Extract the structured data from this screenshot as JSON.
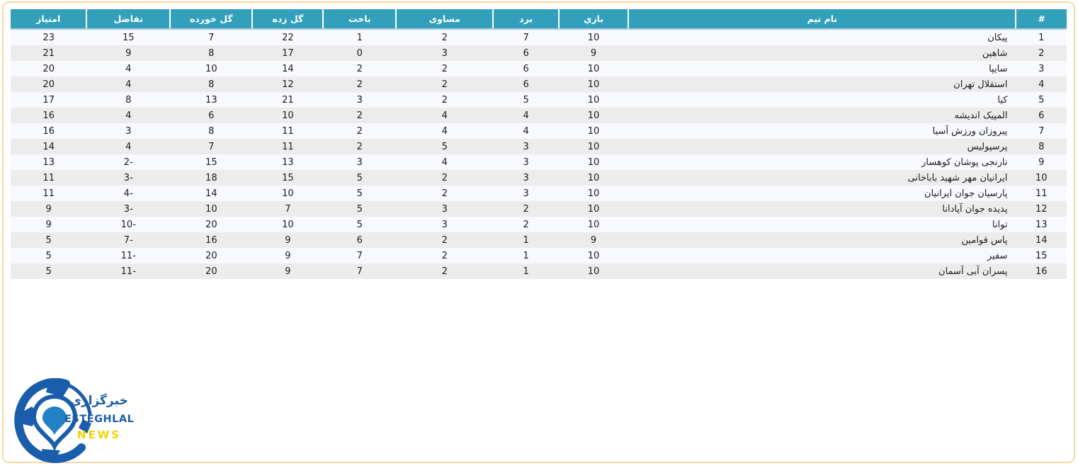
{
  "page": {
    "background_color": "#ffffff",
    "frame_border_color": "#f5d9a4"
  },
  "table": {
    "header_background": "#32a0ba",
    "header_text_color": "#ffffff",
    "row_odd_color": "#f8f9fd",
    "row_even_color": "#ececec",
    "columns": [
      {
        "key": "rank",
        "label": "#"
      },
      {
        "key": "name",
        "label": "نام تیم"
      },
      {
        "key": "played",
        "label": "بازي"
      },
      {
        "key": "won",
        "label": "برد"
      },
      {
        "key": "drawn",
        "label": "مساوی"
      },
      {
        "key": "lost",
        "label": "باخت"
      },
      {
        "key": "goals_for",
        "label": "گل زده"
      },
      {
        "key": "goals_against",
        "label": "گل خورده"
      },
      {
        "key": "diff",
        "label": "تفاضل"
      },
      {
        "key": "points",
        "label": "امتیاز"
      }
    ],
    "rows": [
      {
        "rank": 1,
        "name": "پیکان",
        "played": 10,
        "won": 7,
        "drawn": 2,
        "lost": 1,
        "goals_for": 22,
        "goals_against": 7,
        "diff": 15,
        "points": 23
      },
      {
        "rank": 2,
        "name": "شاهین",
        "played": 9,
        "won": 6,
        "drawn": 3,
        "lost": 0,
        "goals_for": 17,
        "goals_against": 8,
        "diff": 9,
        "points": 21
      },
      {
        "rank": 3,
        "name": "سایپا",
        "played": 10,
        "won": 6,
        "drawn": 2,
        "lost": 2,
        "goals_for": 14,
        "goals_against": 10,
        "diff": 4,
        "points": 20
      },
      {
        "rank": 4,
        "name": "استقلال تهران",
        "played": 10,
        "won": 6,
        "drawn": 2,
        "lost": 2,
        "goals_for": 12,
        "goals_against": 8,
        "diff": 4,
        "points": 20
      },
      {
        "rank": 5,
        "name": "کیا",
        "played": 10,
        "won": 5,
        "drawn": 2,
        "lost": 3,
        "goals_for": 21,
        "goals_against": 13,
        "diff": 8,
        "points": 17
      },
      {
        "rank": 6,
        "name": "المپیک اندیشه",
        "played": 10,
        "won": 4,
        "drawn": 4,
        "lost": 2,
        "goals_for": 10,
        "goals_against": 6,
        "diff": 4,
        "points": 16
      },
      {
        "rank": 7,
        "name": "پیروزان ورزش آسیا",
        "played": 10,
        "won": 4,
        "drawn": 4,
        "lost": 2,
        "goals_for": 11,
        "goals_against": 8,
        "diff": 3,
        "points": 16
      },
      {
        "rank": 8,
        "name": "پرسپولیس",
        "played": 10,
        "won": 3,
        "drawn": 5,
        "lost": 2,
        "goals_for": 11,
        "goals_against": 7,
        "diff": 4,
        "points": 14
      },
      {
        "rank": 9,
        "name": "نارنجی پوشان کوهسار",
        "played": 10,
        "won": 3,
        "drawn": 4,
        "lost": 3,
        "goals_for": 13,
        "goals_against": 15,
        "diff": -2,
        "points": 13
      },
      {
        "rank": 10,
        "name": "ایرانیان مهر شهید باباخانی",
        "played": 10,
        "won": 3,
        "drawn": 2,
        "lost": 5,
        "goals_for": 15,
        "goals_against": 18,
        "diff": -3,
        "points": 11
      },
      {
        "rank": 11,
        "name": "پارسیان جوان ایرانیان",
        "played": 10,
        "won": 3,
        "drawn": 2,
        "lost": 5,
        "goals_for": 10,
        "goals_against": 14,
        "diff": -4,
        "points": 11
      },
      {
        "rank": 12,
        "name": "پدیده جوان آپادانا",
        "played": 10,
        "won": 2,
        "drawn": 3,
        "lost": 5,
        "goals_for": 7,
        "goals_against": 10,
        "diff": -3,
        "points": 9
      },
      {
        "rank": 13,
        "name": "توانا",
        "played": 10,
        "won": 2,
        "drawn": 3,
        "lost": 5,
        "goals_for": 10,
        "goals_against": 20,
        "diff": -10,
        "points": 9
      },
      {
        "rank": 14,
        "name": "پاس قوامین",
        "played": 9,
        "won": 1,
        "drawn": 2,
        "lost": 6,
        "goals_for": 9,
        "goals_against": 16,
        "diff": -7,
        "points": 5
      },
      {
        "rank": 15,
        "name": "سفیر",
        "played": 10,
        "won": 1,
        "drawn": 2,
        "lost": 7,
        "goals_for": 9,
        "goals_against": 20,
        "diff": -11,
        "points": 5
      },
      {
        "rank": 16,
        "name": "پسران آبی آسمان",
        "played": 10,
        "won": 1,
        "drawn": 2,
        "lost": 7,
        "goals_for": 9,
        "goals_against": 20,
        "diff": -11,
        "points": 5
      }
    ]
  },
  "logo": {
    "agency_fa": "خبرگزاری",
    "brand_line1": "ESTEGHLAL",
    "brand_line2": "NEWS",
    "ball_color": "#1a5dab",
    "pin_color": "#2382c5",
    "news_color": "#f6d200"
  }
}
